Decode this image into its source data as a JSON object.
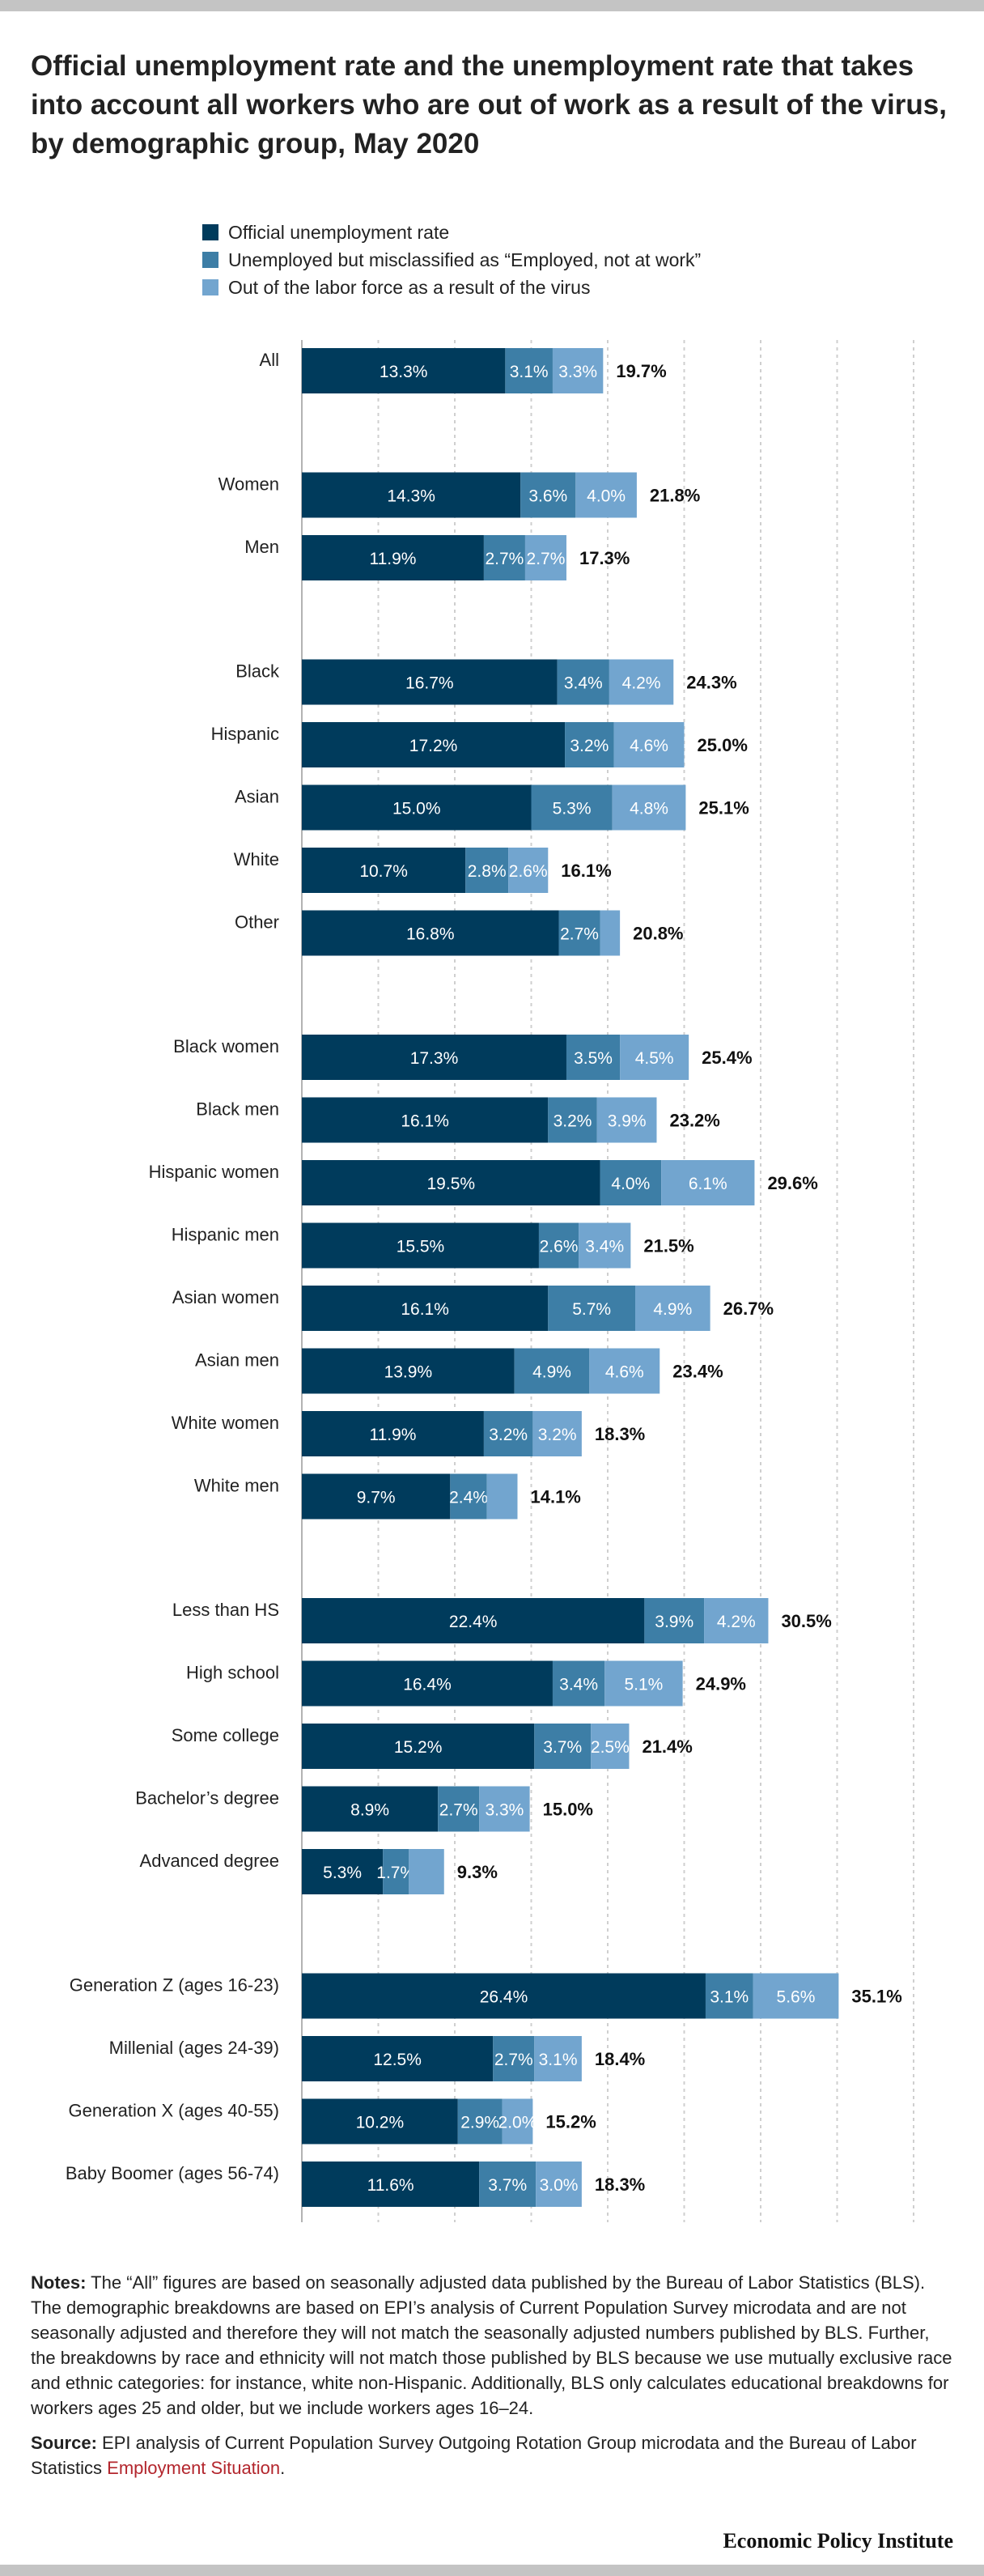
{
  "title": "Official unemployment rate and the unemployment rate that takes into account all workers who are out of work as a result of the virus, by demographic group, May 2020",
  "legend": [
    {
      "label": "Official unemployment rate",
      "color": "#003b5c"
    },
    {
      "label": "Unemployed but misclassified as “Employed, not at work”",
      "color": "#3d7ea6"
    },
    {
      "label": "Out of the labor force as a result of the virus",
      "color": "#72a5cf"
    }
  ],
  "chart_data": {
    "type": "bar",
    "orientation": "horizontal",
    "stacked": true,
    "xlim": [
      0,
      40
    ],
    "grid": true,
    "legend_position": "top-left",
    "categories": [
      "All",
      "Women",
      "Men",
      "Black",
      "Hispanic",
      "Asian",
      "White",
      "Other",
      "Black women",
      "Black men",
      "Hispanic women",
      "Hispanic men",
      "Asian women",
      "Asian men",
      "White women",
      "White men",
      "Less than HS",
      "High school",
      "Some college",
      "Bachelor’s degree",
      "Advanced degree",
      "Generation Z (ages 16-23)",
      "Millenial (ages 24-39)",
      "Generation X (ages 40-55)",
      "Baby Boomer (ages 56-74)"
    ],
    "groups_after_index": [
      0,
      2,
      7,
      15,
      20
    ],
    "series": [
      {
        "name": "Official unemployment rate",
        "color": "#003b5c",
        "values": [
          13.3,
          14.3,
          11.9,
          16.7,
          17.2,
          15.0,
          10.7,
          16.8,
          17.3,
          16.1,
          19.5,
          15.5,
          16.1,
          13.9,
          11.9,
          9.7,
          22.4,
          16.4,
          15.2,
          8.9,
          5.3,
          26.4,
          12.5,
          10.2,
          11.6
        ],
        "labels": [
          "13.3%",
          "14.3%",
          "11.9%",
          "16.7%",
          "17.2%",
          "15.0%",
          "10.7%",
          "16.8%",
          "17.3%",
          "16.1%",
          "19.5%",
          "15.5%",
          "16.1%",
          "13.9%",
          "11.9%",
          "9.7%",
          "22.4%",
          "16.4%",
          "15.2%",
          "8.9%",
          "5.3%",
          "26.4%",
          "12.5%",
          "10.2%",
          "11.6%"
        ]
      },
      {
        "name": "Unemployed but misclassified as “Employed, not at work”",
        "color": "#3d7ea6",
        "values": [
          3.1,
          3.6,
          2.7,
          3.4,
          3.2,
          5.3,
          2.8,
          2.7,
          3.5,
          3.2,
          4.0,
          2.6,
          5.7,
          4.9,
          3.2,
          2.4,
          3.9,
          3.4,
          3.7,
          2.7,
          1.7,
          3.1,
          2.7,
          2.9,
          3.7
        ],
        "labels": [
          "3.1%",
          "3.6%",
          "2.7%",
          "3.4%",
          "3.2%",
          "5.3%",
          "2.8%",
          "2.7%",
          "3.5%",
          "3.2%",
          "4.0%",
          "2.6%",
          "5.7%",
          "4.9%",
          "3.2%",
          "2.4%",
          "3.9%",
          "3.4%",
          "3.7%",
          "2.7%",
          "1.7%",
          "3.1%",
          "2.7%",
          "2.9%",
          "3.7%"
        ]
      },
      {
        "name": "Out of the labor force as a result of the virus",
        "color": "#72a5cf",
        "values": [
          3.3,
          4.0,
          2.7,
          4.2,
          4.6,
          4.8,
          2.6,
          1.3,
          4.5,
          3.9,
          6.1,
          3.4,
          4.9,
          4.6,
          3.2,
          2.0,
          4.2,
          5.1,
          2.5,
          3.3,
          2.3,
          5.6,
          3.1,
          2.0,
          3.0
        ],
        "labels": [
          "3.3%",
          "4.0%",
          "2.7%",
          "4.2%",
          "4.6%",
          "4.8%",
          "2.6%",
          "",
          "4.5%",
          "3.9%",
          "6.1%",
          "3.4%",
          "4.9%",
          "4.6%",
          "3.2%",
          "",
          "4.2%",
          "5.1%",
          "2.5%",
          "3.3%",
          "",
          "5.6%",
          "3.1%",
          "2.0%",
          "3.0%"
        ]
      }
    ],
    "totals": [
      "19.7%",
      "21.8%",
      "17.3%",
      "24.3%",
      "25.0%",
      "25.1%",
      "16.1%",
      "20.8%",
      "25.4%",
      "23.2%",
      "29.6%",
      "21.5%",
      "26.7%",
      "23.4%",
      "18.3%",
      "14.1%",
      "30.5%",
      "24.9%",
      "21.4%",
      "15.0%",
      "9.3%",
      "35.1%",
      "18.4%",
      "15.2%",
      "18.3%"
    ]
  },
  "notes": {
    "label": "Notes:",
    "text": "The “All” figures are based on seasonally adjusted data published by the Bureau of Labor Statistics (BLS). The demographic breakdowns are based on EPI’s analysis of Current Population Survey microdata and are not seasonally adjusted and therefore they will not match the seasonally adjusted numbers published by BLS. Further, the breakdowns by race and ethnicity will not match those published by BLS because we use mutually exclusive race and ethnic categories: for instance, white non-Hispanic. Additionally, BLS only calculates educational breakdowns for workers ages 25 and older, but we include workers ages 16–24."
  },
  "source": {
    "label": "Source:",
    "text": "EPI analysis of Current Population Survey Outgoing Rotation Group microdata and the Bureau of Labor Statistics",
    "link_text": "Employment Situation",
    "end": "."
  },
  "brand": "Economic Policy Institute"
}
